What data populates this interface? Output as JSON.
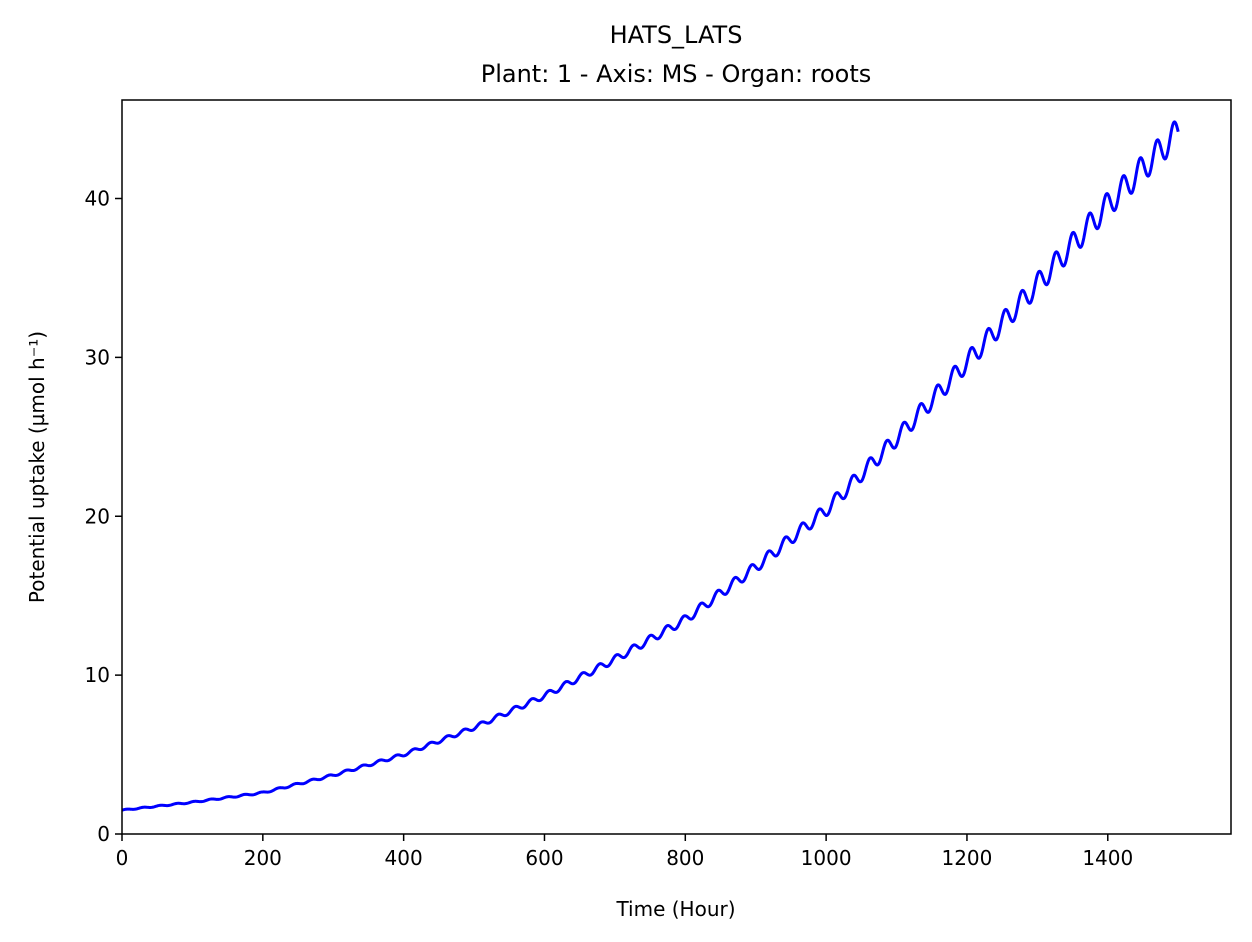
{
  "chart_data": {
    "type": "line",
    "title": "HATS_LATS",
    "subtitle": "Plant: 1 - Axis: MS - Organ: roots",
    "xlabel": "Time (Hour)",
    "ylabel": "Potential uptake (µmol h⁻¹)",
    "xlim": [
      0,
      1575
    ],
    "ylim": [
      0,
      46.2
    ],
    "x_ticks": [
      0,
      200,
      400,
      600,
      800,
      1000,
      1200,
      1400
    ],
    "y_ticks": [
      0,
      10,
      20,
      30,
      40
    ],
    "grid": false,
    "legend": false,
    "series": [
      {
        "color": "#0000ff",
        "oscillation_period_hours": 24,
        "oscillation_amplitude_fraction": 0.02,
        "x": [
          0,
          100,
          200,
          300,
          400,
          500,
          600,
          700,
          800,
          900,
          1000,
          1100,
          1200,
          1300,
          1400,
          1500
        ],
        "y": [
          1.5,
          2.0,
          2.6,
          3.7,
          5.0,
          6.7,
          8.7,
          11.0,
          13.5,
          16.8,
          20.4,
          24.9,
          29.7,
          34.6,
          39.6,
          44.2
        ]
      }
    ]
  }
}
